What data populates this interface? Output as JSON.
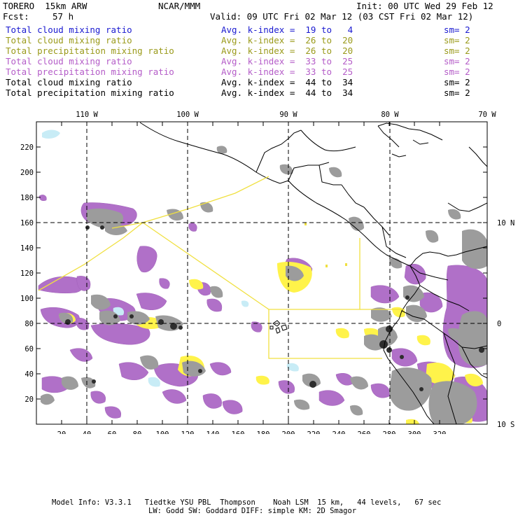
{
  "header": {
    "title": "TORERO  15km ARW",
    "org": "NCAR/MMM",
    "init": "Init: 00 UTC Wed 29 Feb 12",
    "fcst_label": "Fcst:",
    "fcst_value": "57 h",
    "valid": "Valid: 09 UTC Fri 02 Mar 12 (03 CST Fri 02 Mar 12)"
  },
  "legend": [
    {
      "name": "Total cloud mixing ratio",
      "kidx": "Avg. k-index =  19 to   4",
      "sm": "sm= 2",
      "color": "#1a1ad0"
    },
    {
      "name": "Total cloud mixing ratio",
      "kidx": "Avg. k-index =  26 to  20",
      "sm": "sm= 2",
      "color": "#9a9a1a"
    },
    {
      "name": "Total precipitation mixing ratio",
      "kidx": "Avg. k-index =  26 to  20",
      "sm": "sm= 2",
      "color": "#9a9a1a"
    },
    {
      "name": "Total cloud mixing ratio",
      "kidx": "Avg. k-index =  33 to  25",
      "sm": "sm= 2",
      "color": "#b45cc8"
    },
    {
      "name": "Total precipitation mixing ratio",
      "kidx": "Avg. k-index =  33 to  25",
      "sm": "sm= 2",
      "color": "#b45cc8"
    },
    {
      "name": "Total cloud mixing ratio",
      "kidx": "Avg. k-index =  44 to  34",
      "sm": "sm= 2",
      "color": "#000000"
    },
    {
      "name": "Total precipitation mixing ratio",
      "kidx": "Avg. k-index =  44 to  34",
      "sm": "sm= 2",
      "color": "#000000"
    }
  ],
  "map": {
    "top_lon_labels": [
      "110 W",
      "100 W",
      "90 W",
      "80 W",
      "70 W"
    ],
    "right_lat_labels": [
      "10 N",
      "0",
      "10 S"
    ],
    "x_ticks": [
      "20",
      "40",
      "60",
      "80",
      "100",
      "120",
      "140",
      "160",
      "180",
      "200",
      "220",
      "240",
      "260",
      "280",
      "300",
      "320"
    ],
    "y_ticks": [
      "220",
      "200",
      "180",
      "160",
      "140",
      "120",
      "100",
      "80",
      "60",
      "40",
      "20"
    ],
    "colors": {
      "purple": "#b070c8",
      "gray": "#9a9a9a",
      "darkgray": "#3a3a3a",
      "yellow": "#fff34a",
      "cyan": "#c8ecf6",
      "outline": "#f0e040"
    }
  },
  "footer": {
    "line1": "Model Info: V3.3.1   Tiedtke YSU PBL  Thompson    Noah LSM  15 km,   44 levels,   67 sec",
    "line2": "LW: Godd SW: Goddard DIFF: simple KM: 2D Smagor"
  }
}
